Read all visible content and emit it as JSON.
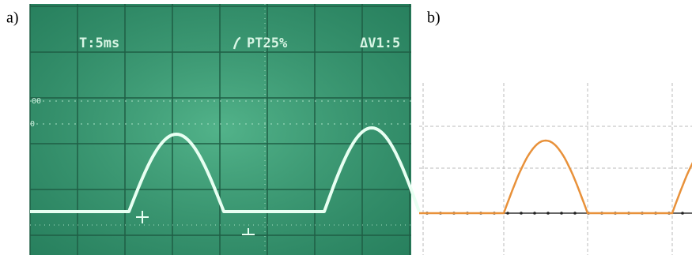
{
  "panels": [
    {
      "label": "a)",
      "readouts": [
        "T:5ms",
        "PT25%",
        "ΔV1:5"
      ],
      "markers": [
        "00",
        "0"
      ]
    },
    {
      "label": "b)"
    }
  ]
}
